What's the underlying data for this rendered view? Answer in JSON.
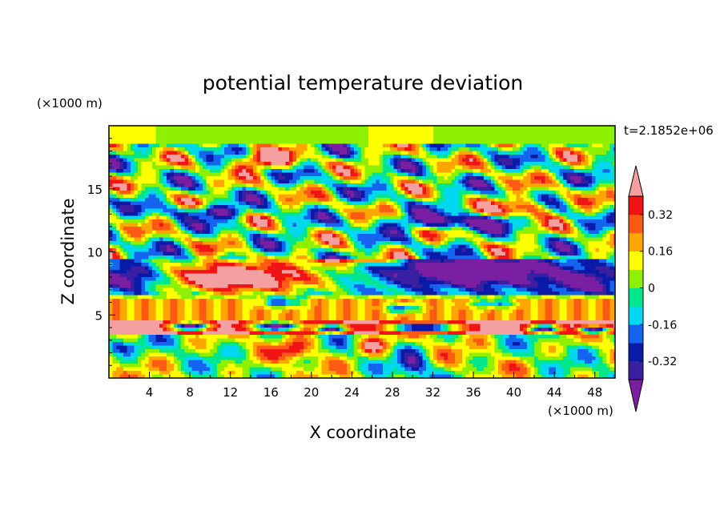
{
  "chart_data": {
    "type": "heatmap",
    "title": "potential temperature deviation",
    "xlabel": "X coordinate",
    "ylabel": "Z coordinate",
    "x_unit": "(×1000 m)",
    "y_unit": "(×1000 m)",
    "time_label": "t=2.1852e+06",
    "xlim": [
      0,
      50
    ],
    "ylim": [
      0,
      20
    ],
    "x_ticks": [
      "4",
      "8",
      "12",
      "16",
      "20",
      "24",
      "28",
      "32",
      "36",
      "40",
      "44",
      "48"
    ],
    "y_ticks": [
      "5",
      "10",
      "15"
    ],
    "colorbar": {
      "labels": [
        "0.32",
        "0.16",
        "0",
        "-0.16",
        "-0.32"
      ],
      "levels": [
        -0.4,
        -0.32,
        -0.24,
        -0.16,
        -0.08,
        0,
        0.08,
        0.16,
        0.24,
        0.32,
        0.4
      ],
      "colors": [
        "#7b1fa2",
        "#3a1fa0",
        "#0a1aa8",
        "#1464f0",
        "#00d7f0",
        "#00e68c",
        "#8cf000",
        "#ffff00",
        "#ffa500",
        "#ff5a14",
        "#f01414",
        "#f5a0a0"
      ],
      "extend": "both"
    },
    "layers": [
      {
        "z_range": [
          19,
          20
        ],
        "pattern": "mostly near 0 with light-green bumps"
      },
      {
        "z_range": [
          10,
          18
        ],
        "pattern": "alternating warm (+0.3 to +0.4) and cold (-0.3 to -0.4) bands, tilted"
      },
      {
        "z_range": [
          7,
          9.5
        ],
        "pattern": "strong warm anomaly (>0.4) at x 4-22, cold band (<-0.4) above and to the right"
      },
      {
        "z_range": [
          5,
          6.5
        ],
        "pattern": "orange/yellow band (+0.16 to +0.24)"
      },
      {
        "z_range": [
          3.5,
          4.5
        ],
        "pattern": "pink band (>0.4) with purple blobs (<-0.4)"
      },
      {
        "z_range": [
          0,
          3.5
        ],
        "pattern": "mixed turbulent field, -0.2 to +0.3"
      }
    ]
  }
}
